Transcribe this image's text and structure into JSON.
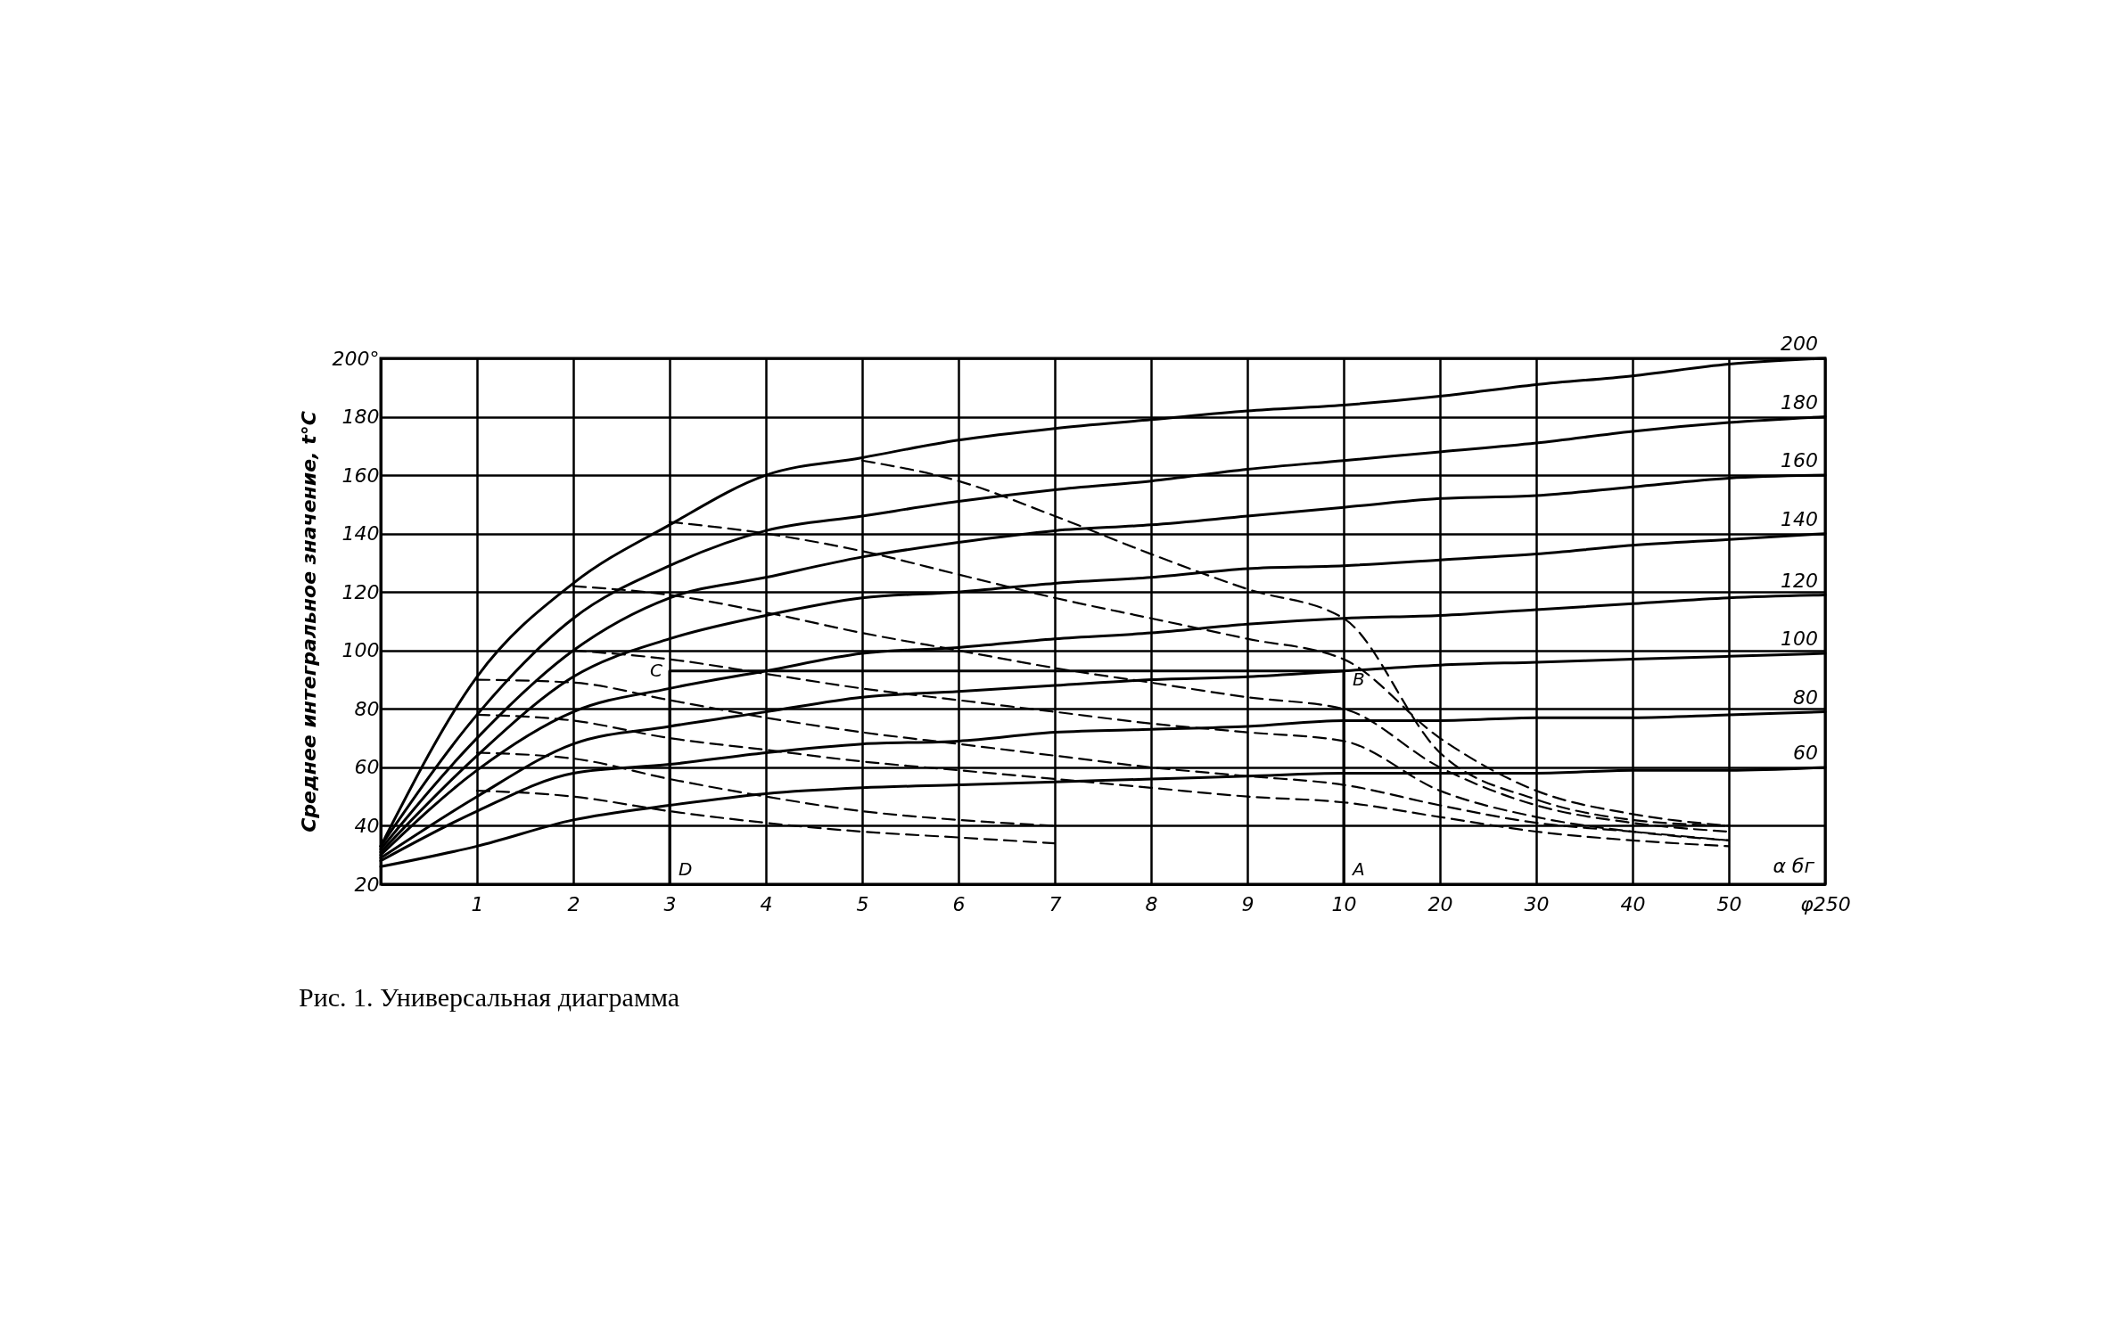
{
  "chart_data": {
    "type": "line",
    "title": "Рис. 1. Универсальная диаграмма",
    "ylabel": "Среднее интегральное значение, t°C",
    "categories": [
      null,
      "1",
      "2",
      "3",
      "4",
      "5",
      "6",
      "7",
      "8",
      "9",
      "10",
      "20",
      "30",
      "40",
      "50",
      "φ250"
    ],
    "ylim": [
      20,
      200
    ],
    "yticks": [
      20,
      40,
      60,
      80,
      100,
      120,
      140,
      160,
      180,
      {
        "value": 200,
        "label": "200°"
      }
    ],
    "grid": true,
    "series": [
      {
        "name": "200",
        "color": "#000000",
        "line_style": "solid",
        "values": [
          33,
          91,
          123,
          143,
          160,
          166,
          172,
          176,
          179,
          182,
          184,
          187,
          191,
          194,
          198,
          200
        ]
      },
      {
        "name": "180",
        "color": "#000000",
        "line_style": "solid",
        "values": [
          33,
          78,
          111,
          129,
          141,
          146,
          151,
          155,
          158,
          162,
          165,
          168,
          171,
          175,
          178,
          180
        ]
      },
      {
        "name": "160",
        "color": "#000000",
        "line_style": "solid",
        "values": [
          32,
          70,
          100,
          118,
          125,
          132,
          137,
          141,
          143,
          146,
          149,
          152,
          153,
          156,
          159,
          160
        ]
      },
      {
        "name": "140",
        "color": "#000000",
        "line_style": "solid",
        "values": [
          31,
          64,
          91,
          104,
          112,
          118,
          120,
          123,
          125,
          128,
          129,
          131,
          133,
          136,
          138,
          140
        ]
      },
      {
        "name": "120",
        "color": "#000000",
        "line_style": "solid",
        "values": [
          30,
          59,
          79,
          87,
          93,
          99,
          101,
          104,
          106,
          109,
          111,
          112,
          114,
          116,
          118,
          119
        ]
      },
      {
        "name": "100",
        "color": "#000000",
        "line_style": "solid",
        "values": [
          29,
          50,
          68,
          74,
          79,
          84,
          86,
          88,
          90,
          91,
          93,
          95,
          96,
          97,
          98,
          99
        ]
      },
      {
        "name": "80",
        "color": "#000000",
        "line_style": "solid",
        "values": [
          28,
          45,
          58,
          61,
          65,
          68,
          69,
          72,
          73,
          74,
          76,
          76,
          77,
          77,
          78,
          79
        ]
      },
      {
        "name": "60",
        "color": "#000000",
        "line_style": "solid",
        "values": [
          26,
          33,
          42,
          47,
          51,
          53,
          54,
          55,
          56,
          57,
          58,
          58,
          58,
          59,
          59,
          60
        ]
      },
      {
        "color": "#000000",
        "line_style": "dashed",
        "values": [
          null,
          null,
          null,
          null,
          null,
          165,
          158,
          146,
          133,
          121,
          111,
          65,
          49,
          42,
          40,
          null
        ]
      },
      {
        "color": "#000000",
        "line_style": "dashed",
        "values": [
          null,
          null,
          null,
          144,
          140,
          134,
          126,
          118,
          111,
          104,
          97,
          70,
          52,
          44,
          40,
          null
        ]
      },
      {
        "color": "#000000",
        "line_style": "dashed",
        "values": [
          null,
          null,
          122,
          119,
          113,
          106,
          100,
          94,
          89,
          84,
          80,
          60,
          47,
          41,
          38,
          null
        ]
      },
      {
        "color": "#000000",
        "line_style": "dashed",
        "values": [
          null,
          null,
          100,
          97,
          92,
          87,
          83,
          79,
          75,
          72,
          69,
          52,
          43,
          38,
          35,
          null
        ]
      },
      {
        "color": "#000000",
        "line_style": "dashed",
        "values": [
          null,
          90,
          89,
          83,
          77,
          72,
          68,
          64,
          60,
          57,
          54,
          47,
          41,
          38,
          35,
          null
        ]
      },
      {
        "color": "#000000",
        "line_style": "dashed",
        "values": [
          null,
          78,
          76,
          70,
          66,
          62,
          59,
          56,
          53,
          50,
          48,
          43,
          38,
          35,
          33,
          null
        ]
      },
      {
        "color": "#000000",
        "line_style": "dashed",
        "values": [
          null,
          65,
          63,
          56,
          50,
          45,
          42,
          40,
          null,
          null,
          null,
          null,
          null,
          null,
          null,
          null
        ]
      },
      {
        "color": "#000000",
        "line_style": "dashed",
        "values": [
          null,
          52,
          50,
          45,
          41,
          38,
          36,
          34,
          null,
          null,
          null,
          null,
          null,
          null,
          null,
          null
        ]
      },
      {
        "color": "#000000",
        "line_style": "solid",
        "x": [
          "3",
          "3",
          "10",
          "10"
        ],
        "values": [
          20,
          93,
          93,
          20
        ]
      }
    ],
    "annotations": [
      {
        "text": "C",
        "x": "3",
        "y": 99
      },
      {
        "text": "B",
        "x": "10",
        "y": 90
      },
      {
        "text": "D",
        "x": "3",
        "y": 25
      },
      {
        "text": "A",
        "x": "10",
        "y": 25
      },
      "α бг"
    ]
  }
}
